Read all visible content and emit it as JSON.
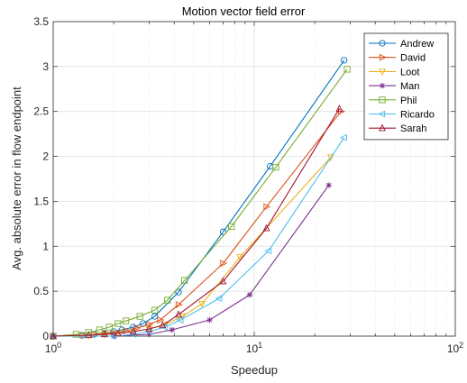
{
  "chart_data": {
    "type": "line",
    "title": "Motion vector field error",
    "xlabel": "Speedup",
    "ylabel": "Avg. absolute error in flow endpoint",
    "xscale": "log",
    "xlim": [
      1,
      100
    ],
    "ylim": [
      0,
      3.5
    ],
    "x_tick_labels": [
      {
        "value": 1,
        "base": "10",
        "exp": "0"
      },
      {
        "value": 10,
        "base": "10",
        "exp": "1"
      },
      {
        "value": 100,
        "base": "10",
        "exp": "2"
      }
    ],
    "y_ticks": [
      0,
      0.5,
      1,
      1.5,
      2,
      2.5,
      3,
      3.5
    ],
    "y_tick_labels": [
      "0",
      "0.5",
      "1",
      "1.5",
      "2",
      "2.5",
      "3",
      "3.5"
    ],
    "grid": true,
    "legend_position": "top-right",
    "series": [
      {
        "name": "Andrew",
        "color": "#0072BD",
        "marker": "circle",
        "x": [
          1,
          1.4,
          1.6,
          1.8,
          2.0,
          2.2,
          2.5,
          2.8,
          3.2,
          4.2,
          7.0,
          12.0,
          28.0
        ],
        "y": [
          0.0,
          0.01,
          0.02,
          0.03,
          0.05,
          0.07,
          0.1,
          0.14,
          0.22,
          0.49,
          1.16,
          1.89,
          3.07
        ]
      },
      {
        "name": "David",
        "color": "#D95319",
        "marker": "triangle-right",
        "x": [
          1,
          1.4,
          1.6,
          1.8,
          2.0,
          2.3,
          2.6,
          3.0,
          3.4,
          4.2,
          7.0,
          11.5,
          27.0
        ],
        "y": [
          0.0,
          0.01,
          0.02,
          0.03,
          0.04,
          0.06,
          0.09,
          0.13,
          0.18,
          0.35,
          0.81,
          1.44,
          2.5
        ]
      },
      {
        "name": "Loot",
        "color": "#EDB120",
        "marker": "triangle-down",
        "x": [
          1,
          1.5,
          1.8,
          2.1,
          2.5,
          3.0,
          3.6,
          4.4,
          5.5,
          8.5,
          24.0
        ],
        "y": [
          0.0,
          0.01,
          0.02,
          0.03,
          0.05,
          0.08,
          0.13,
          0.22,
          0.36,
          0.88,
          1.99
        ]
      },
      {
        "name": "Man",
        "color": "#7E2F8E",
        "marker": "star",
        "x": [
          1,
          2.0,
          3.0,
          3.9,
          6.0,
          9.5,
          23.5
        ],
        "y": [
          0.0,
          0.0,
          0.02,
          0.07,
          0.18,
          0.46,
          1.68
        ]
      },
      {
        "name": "Phil",
        "color": "#77AC30",
        "marker": "square",
        "x": [
          1,
          1.3,
          1.5,
          1.7,
          1.9,
          2.1,
          2.3,
          2.7,
          3.2,
          3.7,
          4.5,
          7.7,
          12.8,
          29.0
        ],
        "y": [
          0.0,
          0.02,
          0.04,
          0.07,
          0.1,
          0.14,
          0.17,
          0.22,
          0.29,
          0.4,
          0.62,
          1.22,
          1.88,
          2.97
        ]
      },
      {
        "name": "Ricardo",
        "color": "#4DBEEE",
        "marker": "triangle-left",
        "x": [
          1,
          2.0,
          2.5,
          3.0,
          3.6,
          4.3,
          6.7,
          11.8,
          28.0
        ],
        "y": [
          0.0,
          0.0,
          0.02,
          0.05,
          0.1,
          0.18,
          0.42,
          0.95,
          2.21
        ]
      },
      {
        "name": "Sarah",
        "color": "#A2142F",
        "marker": "triangle-up",
        "x": [
          1,
          1.5,
          1.8,
          2.1,
          2.5,
          3.0,
          3.5,
          4.2,
          7.0,
          11.5,
          26.5
        ],
        "y": [
          0.0,
          0.01,
          0.02,
          0.03,
          0.05,
          0.08,
          0.12,
          0.24,
          0.61,
          1.2,
          2.53
        ]
      }
    ]
  }
}
